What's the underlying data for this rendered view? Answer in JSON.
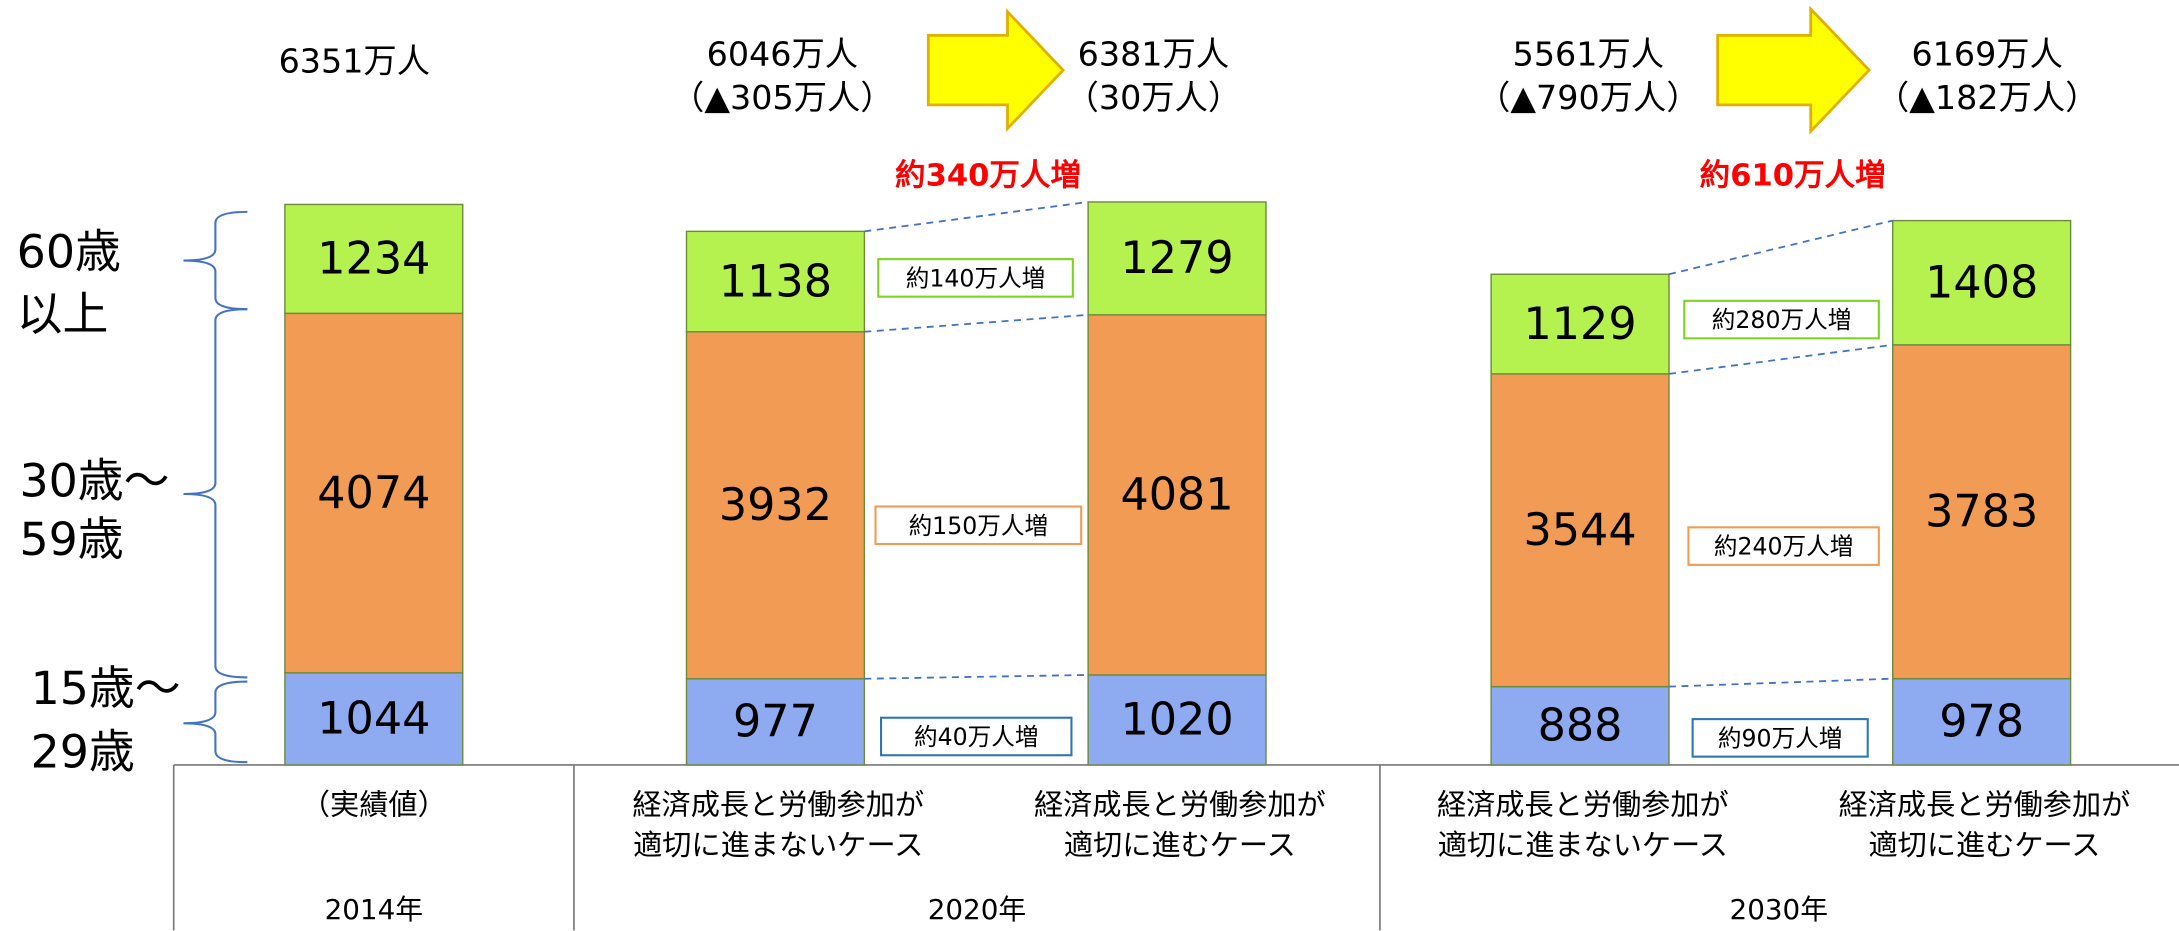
{
  "chart_data": {
    "type": "bar",
    "stacked": true,
    "ylim": [
      0,
      8000
    ],
    "categories": [
      [
        "（実績値）"
      ],
      [
        "経済成長と労働参加が",
        "適切に進まないケース"
      ],
      [
        "経済成長と労働参加が",
        "適切に進むケース"
      ],
      [
        "経済成長と労働参加が",
        "適切に進まないケース"
      ],
      [
        "経済成長と労働参加が",
        "適切に進むケース"
      ]
    ],
    "groups": [
      "2014年",
      "2020年",
      "2030年"
    ],
    "series": [
      {
        "name": [
          "15歳～",
          "29歳"
        ],
        "color": "#8eaaf0",
        "values": [
          1044,
          977,
          1020,
          888,
          978
        ]
      },
      {
        "name": [
          "30歳～",
          "59歳"
        ],
        "color": "#f19b55",
        "values": [
          4074,
          3932,
          4081,
          3544,
          3783
        ]
      },
      {
        "name": [
          "60歳",
          "以上"
        ],
        "color": "#b6f24f",
        "values": [
          1234,
          1138,
          1279,
          1129,
          1408
        ]
      }
    ],
    "totals": [
      [
        "6351万人"
      ],
      [
        "6046万人",
        "（▲305万人）"
      ],
      [
        "6381万人",
        "（30万人）"
      ],
      [
        "5561万人",
        "（▲790万人）"
      ],
      [
        "6169万人",
        "（▲182万人）"
      ]
    ],
    "increase_labels": [
      "約340万人増",
      "約610万人増"
    ],
    "segment_increase_labels": [
      [
        "約40万人増",
        "約150万人増",
        "約140万人増"
      ],
      [
        "約90万人増",
        "約240万人増",
        "約280万人増"
      ]
    ]
  }
}
